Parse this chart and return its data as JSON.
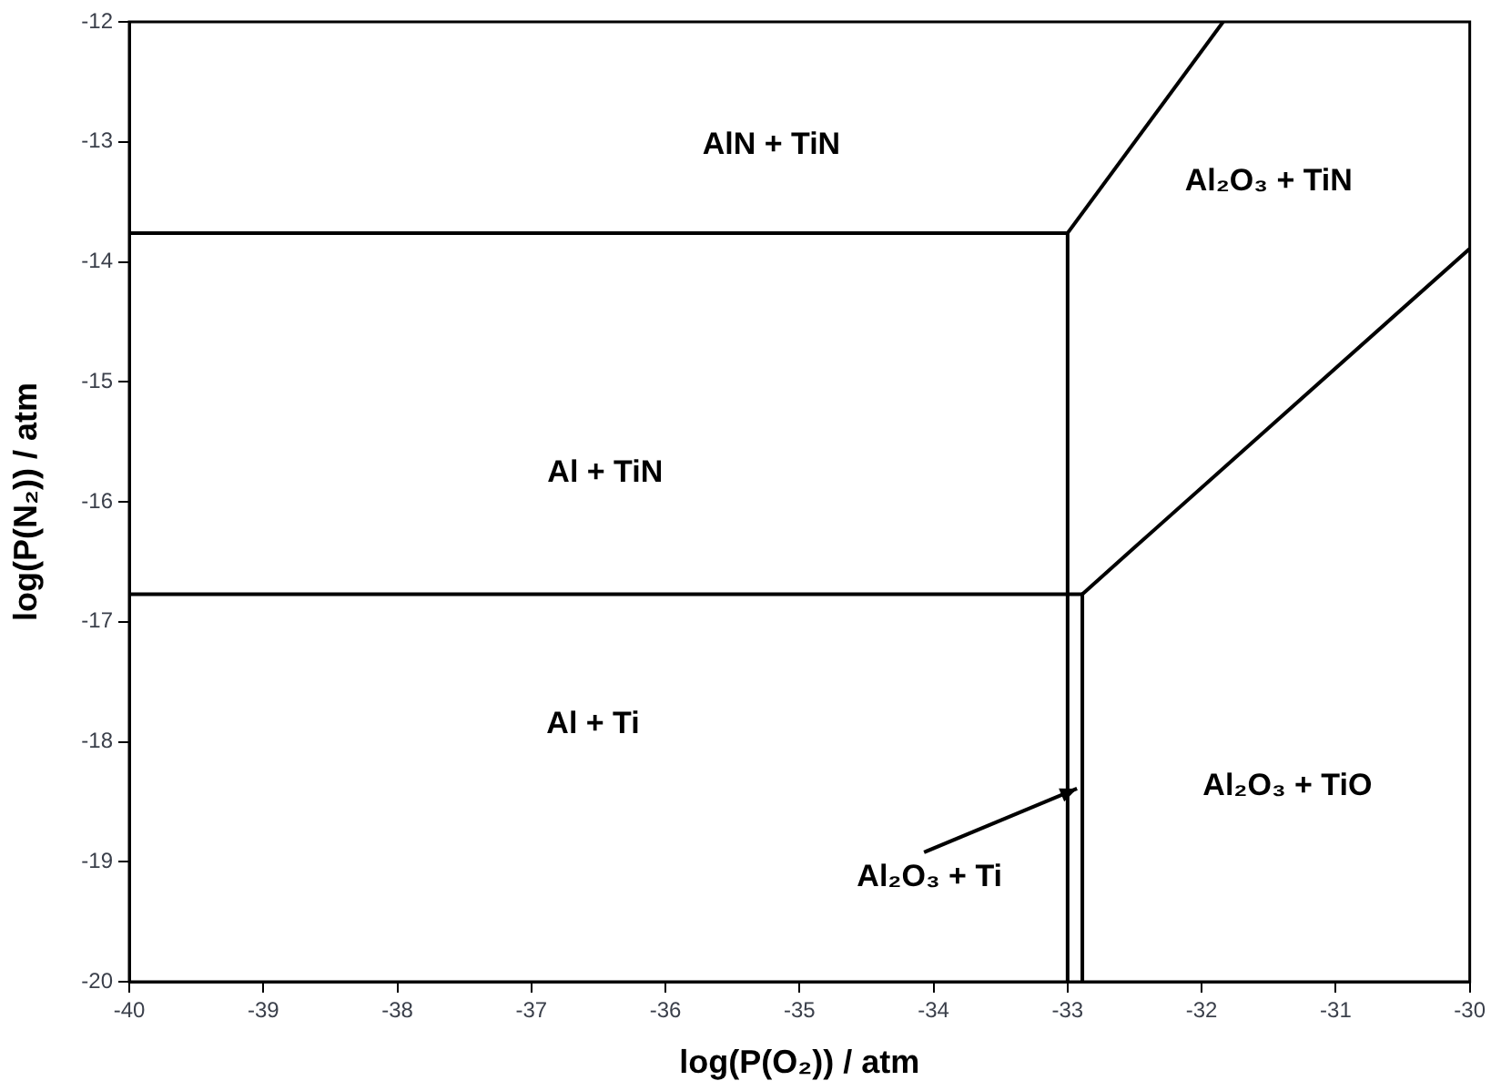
{
  "chart_data": {
    "type": "line",
    "xlabel": "log(P(O₂)) / atm",
    "ylabel": "log(P(N₂)) / atm",
    "xlim": [
      -40,
      -30
    ],
    "xticks": [
      -40,
      -39,
      -38,
      -37,
      -36,
      -35,
      -34,
      -33,
      -32,
      -31,
      -30
    ],
    "ylim": [
      -20,
      -12
    ],
    "yticks": [
      -20,
      -19,
      -18,
      -17,
      -16,
      -15,
      -14,
      -13,
      -12
    ],
    "grid": false,
    "legend": false,
    "marker": "none",
    "line_style": "solid",
    "series": [
      {
        "color": "#000000",
        "x": [
          -40,
          -33.0
        ],
        "values": [
          -13.76,
          -13.76
        ]
      },
      {
        "color": "#000000",
        "x": [
          -33.0,
          -31.84
        ],
        "values": [
          -13.76,
          -12
        ]
      },
      {
        "color": "#000000",
        "x": [
          -33.0,
          -33.0
        ],
        "values": [
          -13.76,
          -20
        ]
      },
      {
        "color": "#000000",
        "x": [
          -40,
          -32.89
        ],
        "values": [
          -16.77,
          -16.77
        ]
      },
      {
        "color": "#000000",
        "x": [
          -32.89,
          -32.89
        ],
        "values": [
          -16.77,
          -20
        ]
      },
      {
        "color": "#000000",
        "x": [
          -32.89,
          -32.5,
          -30
        ],
        "values": [
          -16.77,
          -16.38,
          -13.89
        ]
      }
    ],
    "annotations": [
      "AlN + TiN",
      "Al₂O₃ + TiN",
      "Al + TiN",
      "Al + Ti",
      "Al₂O₃ + TiO",
      {
        "text": "Al₂O₃ + Ti",
        "x": -32.93,
        "y": -18.39
      }
    ]
  }
}
